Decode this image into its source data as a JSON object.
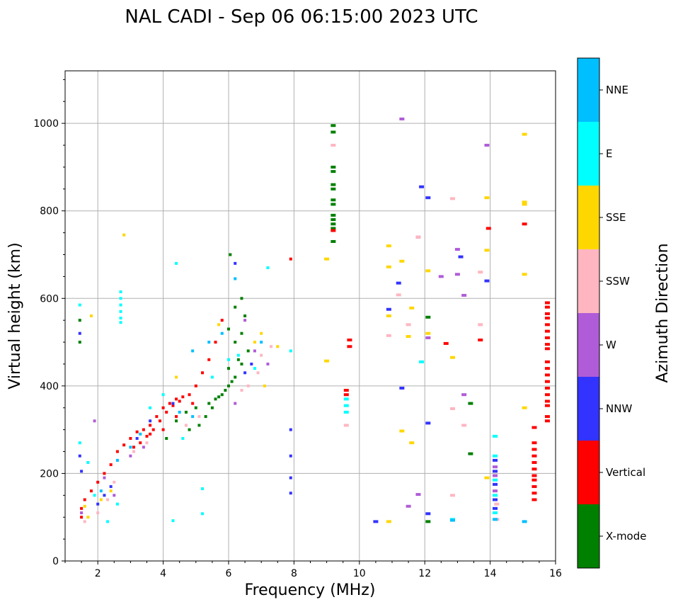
{
  "chart_data": {
    "type": "scatter",
    "title": "NAL CADI - Sep 06 06:15:00 2023 UTC",
    "xlabel": "Frequency (MHz)",
    "ylabel": "Virtual height (km)",
    "xlim": [
      1,
      16
    ],
    "ylim": [
      0,
      1120
    ],
    "x_ticks": [
      2,
      4,
      6,
      8,
      10,
      12,
      14,
      16
    ],
    "y_ticks": [
      0,
      200,
      400,
      600,
      800,
      1000
    ],
    "grid": true,
    "colorbar": {
      "label": "Azimuth Direction",
      "categories": [
        {
          "name": "X-mode",
          "color": "#008000"
        },
        {
          "name": "Vertical",
          "color": "#ff0000"
        },
        {
          "name": "NNW",
          "color": "#3333ff"
        },
        {
          "name": "W",
          "color": "#b05cd8"
        },
        {
          "name": "SSW",
          "color": "#ffb6c1"
        },
        {
          "name": "SSE",
          "color": "#ffd700"
        },
        {
          "name": "E",
          "color": "#00ffff"
        },
        {
          "name": "NNE",
          "color": "#00bfff"
        }
      ]
    },
    "series": [
      {
        "name": "X-mode",
        "points": [
          [
            9.2,
            995
          ],
          [
            9.2,
            980
          ],
          [
            9.2,
            900
          ],
          [
            9.2,
            890
          ],
          [
            9.2,
            860
          ],
          [
            9.2,
            850
          ],
          [
            9.2,
            825
          ],
          [
            9.2,
            815
          ],
          [
            9.2,
            790
          ],
          [
            9.2,
            780
          ],
          [
            9.2,
            770
          ],
          [
            9.2,
            760
          ],
          [
            9.2,
            730
          ],
          [
            13.4,
            360
          ],
          [
            13.4,
            245
          ],
          [
            12.1,
            90
          ],
          [
            12.1,
            557
          ],
          [
            6.05,
            700
          ],
          [
            5.5,
            350
          ],
          [
            5.8,
            380
          ],
          [
            6.0,
            400
          ],
          [
            6.2,
            420
          ],
          [
            6.0,
            440
          ],
          [
            6.3,
            460
          ],
          [
            5.6,
            370
          ],
          [
            5.3,
            330
          ],
          [
            5.1,
            310
          ],
          [
            4.8,
            300
          ],
          [
            5.9,
            390
          ],
          [
            6.1,
            410
          ],
          [
            4.1,
            280
          ],
          [
            4.4,
            320
          ],
          [
            4.7,
            340
          ],
          [
            5.0,
            350
          ],
          [
            5.4,
            360
          ],
          [
            5.7,
            375
          ],
          [
            6.4,
            450
          ],
          [
            6.6,
            480
          ],
          [
            6.2,
            500
          ],
          [
            6.4,
            520
          ],
          [
            6.0,
            530
          ],
          [
            6.5,
            560
          ],
          [
            6.2,
            580
          ],
          [
            6.4,
            600
          ],
          [
            1.45,
            550
          ],
          [
            1.45,
            500
          ]
        ]
      },
      {
        "name": "Vertical",
        "points": [
          [
            15.75,
            590
          ],
          [
            15.75,
            580
          ],
          [
            15.75,
            565
          ],
          [
            15.75,
            555
          ],
          [
            15.75,
            540
          ],
          [
            15.75,
            525
          ],
          [
            15.75,
            510
          ],
          [
            15.75,
            495
          ],
          [
            15.75,
            485
          ],
          [
            15.75,
            455
          ],
          [
            15.75,
            440
          ],
          [
            15.75,
            425
          ],
          [
            15.75,
            410
          ],
          [
            15.75,
            395
          ],
          [
            15.75,
            380
          ],
          [
            15.75,
            365
          ],
          [
            15.75,
            355
          ],
          [
            15.75,
            330
          ],
          [
            15.75,
            320
          ],
          [
            15.35,
            305
          ],
          [
            15.35,
            270
          ],
          [
            15.35,
            255
          ],
          [
            15.35,
            240
          ],
          [
            15.35,
            225
          ],
          [
            15.35,
            210
          ],
          [
            15.35,
            195
          ],
          [
            15.35,
            185
          ],
          [
            15.35,
            170
          ],
          [
            15.35,
            155
          ],
          [
            15.35,
            140
          ],
          [
            15.05,
            770
          ],
          [
            13.95,
            760
          ],
          [
            13.7,
            505
          ],
          [
            12.65,
            497
          ],
          [
            9.7,
            490
          ],
          [
            9.7,
            505
          ],
          [
            9.6,
            390
          ],
          [
            9.6,
            380
          ],
          [
            9.2,
            755
          ],
          [
            7.9,
            690
          ],
          [
            2.6,
            250
          ],
          [
            2.8,
            265
          ],
          [
            3.0,
            280
          ],
          [
            3.2,
            295
          ],
          [
            3.4,
            300
          ],
          [
            3.6,
            310
          ],
          [
            3.8,
            330
          ],
          [
            4.0,
            350
          ],
          [
            4.2,
            360
          ],
          [
            4.4,
            370
          ],
          [
            4.6,
            375
          ],
          [
            4.8,
            380
          ],
          [
            3.1,
            260
          ],
          [
            3.3,
            270
          ],
          [
            3.5,
            285
          ],
          [
            3.7,
            300
          ],
          [
            3.9,
            320
          ],
          [
            4.1,
            340
          ],
          [
            4.3,
            355
          ],
          [
            4.5,
            365
          ],
          [
            2.4,
            220
          ],
          [
            2.2,
            200
          ],
          [
            2.0,
            180
          ],
          [
            1.8,
            160
          ],
          [
            1.6,
            140
          ],
          [
            1.5,
            120
          ],
          [
            5.0,
            400
          ],
          [
            5.2,
            430
          ],
          [
            5.4,
            460
          ],
          [
            5.6,
            500
          ],
          [
            5.8,
            550
          ],
          [
            3.6,
            290
          ],
          [
            4.0,
            300
          ],
          [
            4.4,
            330
          ],
          [
            4.9,
            360
          ],
          [
            1.5,
            100
          ]
        ]
      },
      {
        "name": "NNW",
        "points": [
          [
            11.9,
            855
          ],
          [
            12.1,
            830
          ],
          [
            13.1,
            695
          ],
          [
            13.9,
            640
          ],
          [
            11.2,
            635
          ],
          [
            10.9,
            575
          ],
          [
            11.3,
            395
          ],
          [
            12.1,
            315
          ],
          [
            14.15,
            230
          ],
          [
            14.15,
            205
          ],
          [
            14.15,
            175
          ],
          [
            14.15,
            140
          ],
          [
            14.15,
            120
          ],
          [
            10.5,
            90
          ],
          [
            12.1,
            108
          ],
          [
            7.9,
            300
          ],
          [
            7.9,
            240
          ],
          [
            7.9,
            190
          ],
          [
            7.9,
            155
          ],
          [
            6.2,
            680
          ],
          [
            1.45,
            520
          ],
          [
            1.45,
            240
          ],
          [
            2.0,
            130
          ],
          [
            2.2,
            150
          ],
          [
            2.4,
            170
          ],
          [
            3.2,
            280
          ],
          [
            3.6,
            320
          ],
          [
            4.3,
            360
          ],
          [
            6.5,
            430
          ],
          [
            6.7,
            450
          ],
          [
            1.5,
            205
          ]
        ]
      },
      {
        "name": "W",
        "points": [
          [
            11.3,
            1010
          ],
          [
            13.9,
            950
          ],
          [
            13.0,
            712
          ],
          [
            12.5,
            650
          ],
          [
            13.0,
            655
          ],
          [
            13.2,
            607
          ],
          [
            11.8,
            740
          ],
          [
            12.1,
            510
          ],
          [
            13.2,
            380
          ],
          [
            11.8,
            152
          ],
          [
            11.5,
            125
          ],
          [
            14.15,
            215
          ],
          [
            14.15,
            195
          ],
          [
            14.15,
            160
          ],
          [
            1.9,
            320
          ],
          [
            6.5,
            550
          ],
          [
            6.8,
            480
          ],
          [
            2.2,
            190
          ],
          [
            3.0,
            240
          ],
          [
            3.4,
            260
          ],
          [
            7.2,
            450
          ],
          [
            2.5,
            150
          ],
          [
            6.2,
            360
          ],
          [
            1.5,
            110
          ]
        ]
      },
      {
        "name": "SSW",
        "points": [
          [
            9.2,
            950
          ],
          [
            12.85,
            828
          ],
          [
            13.7,
            660
          ],
          [
            11.2,
            608
          ],
          [
            11.5,
            540
          ],
          [
            13.7,
            540
          ],
          [
            10.9,
            515
          ],
          [
            12.85,
            348
          ],
          [
            13.2,
            310
          ],
          [
            12.85,
            150
          ],
          [
            14.2,
            130
          ],
          [
            14.2,
            95
          ],
          [
            11.8,
            740
          ],
          [
            9.6,
            310
          ],
          [
            7.0,
            470
          ],
          [
            7.3,
            490
          ],
          [
            6.9,
            430
          ],
          [
            6.6,
            400
          ],
          [
            6.4,
            390
          ],
          [
            2.3,
            140
          ],
          [
            2.5,
            180
          ],
          [
            3.1,
            250
          ],
          [
            3.5,
            270
          ],
          [
            4.7,
            310
          ],
          [
            5.1,
            330
          ],
          [
            1.6,
            90
          ],
          [
            2.0,
            110
          ]
        ]
      },
      {
        "name": "SSE",
        "points": [
          [
            15.05,
            975
          ],
          [
            15.05,
            820
          ],
          [
            15.05,
            815
          ],
          [
            15.05,
            655
          ],
          [
            15.05,
            350
          ],
          [
            13.9,
            830
          ],
          [
            13.9,
            710
          ],
          [
            12.1,
            663
          ],
          [
            12.1,
            520
          ],
          [
            12.85,
            465
          ],
          [
            11.5,
            513
          ],
          [
            11.6,
            578
          ],
          [
            10.9,
            720
          ],
          [
            10.9,
            672
          ],
          [
            10.9,
            560
          ],
          [
            11.3,
            685
          ],
          [
            11.3,
            297
          ],
          [
            11.6,
            270
          ],
          [
            13.9,
            190
          ],
          [
            10.9,
            90
          ],
          [
            9.0,
            690
          ],
          [
            9.0,
            457
          ],
          [
            2.8,
            745
          ],
          [
            1.8,
            560
          ],
          [
            7.0,
            520
          ],
          [
            7.5,
            490
          ],
          [
            6.8,
            500
          ],
          [
            7.1,
            400
          ],
          [
            5.7,
            540
          ],
          [
            4.4,
            420
          ],
          [
            2.4,
            160
          ],
          [
            2.1,
            140
          ],
          [
            1.6,
            125
          ],
          [
            1.7,
            100
          ]
        ]
      },
      {
        "name": "E",
        "points": [
          [
            2.7,
            615
          ],
          [
            2.7,
            600
          ],
          [
            2.7,
            585
          ],
          [
            2.7,
            570
          ],
          [
            2.7,
            555
          ],
          [
            2.7,
            545
          ],
          [
            9.6,
            370
          ],
          [
            9.6,
            355
          ],
          [
            9.6,
            340
          ],
          [
            11.9,
            455
          ],
          [
            14.15,
            285
          ],
          [
            14.15,
            240
          ],
          [
            14.15,
            185
          ],
          [
            14.15,
            150
          ],
          [
            14.15,
            110
          ],
          [
            12.85,
            95
          ],
          [
            4.4,
            680
          ],
          [
            7.2,
            670
          ],
          [
            1.45,
            585
          ],
          [
            1.45,
            270
          ],
          [
            1.7,
            225
          ],
          [
            2.3,
            90
          ],
          [
            4.3,
            92
          ],
          [
            5.2,
            165
          ],
          [
            5.2,
            108
          ],
          [
            7.9,
            480
          ],
          [
            6.8,
            440
          ],
          [
            6.3,
            470
          ],
          [
            4.6,
            280
          ],
          [
            2.6,
            130
          ],
          [
            1.9,
            150
          ],
          [
            3.6,
            350
          ],
          [
            4.0,
            380
          ],
          [
            5.5,
            420
          ],
          [
            6.0,
            460
          ]
        ]
      },
      {
        "name": "NNE",
        "points": [
          [
            15.05,
            90
          ],
          [
            14.15,
            95
          ],
          [
            12.85,
            93
          ],
          [
            6.2,
            645
          ],
          [
            4.9,
            480
          ],
          [
            5.4,
            500
          ],
          [
            5.8,
            520
          ],
          [
            3.0,
            260
          ],
          [
            3.3,
            290
          ],
          [
            2.6,
            230
          ],
          [
            2.1,
            160
          ],
          [
            4.5,
            340
          ],
          [
            4.9,
            330
          ],
          [
            7.0,
            500
          ]
        ]
      }
    ]
  }
}
